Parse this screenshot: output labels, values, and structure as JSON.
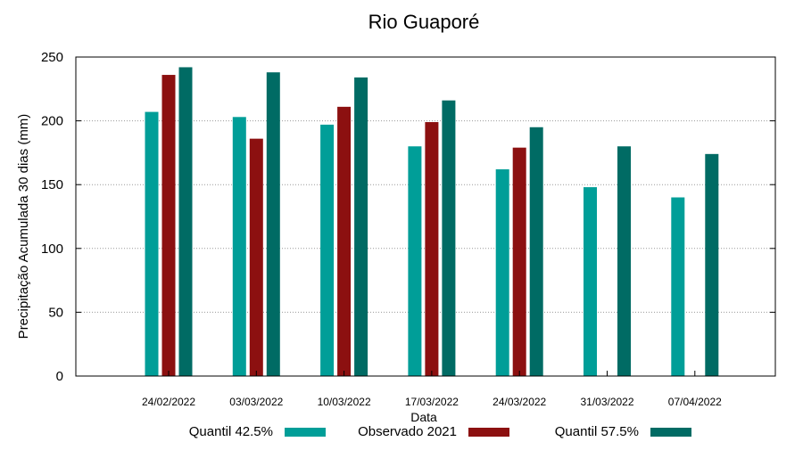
{
  "chart_data": {
    "type": "bar",
    "title": "Rio Guaporé",
    "xlabel": "Data",
    "ylabel": "Precipitação Acumulada 30 dias (mm)",
    "ylim": [
      0,
      250
    ],
    "yticks": [
      0,
      50,
      100,
      150,
      200,
      250
    ],
    "grid": "horizontal-dotted",
    "legend_position": "bottom",
    "categories": [
      "24/02/2022",
      "03/03/2022",
      "10/03/2022",
      "17/03/2022",
      "24/03/2022",
      "31/03/2022",
      "07/04/2022"
    ],
    "series": [
      {
        "name": "Quantil 42.5%",
        "color": "#009e98",
        "values": [
          207,
          203,
          197,
          180,
          162,
          148,
          140
        ]
      },
      {
        "name": "Observado 2021",
        "color": "#8c1010",
        "values": [
          236,
          186,
          211,
          199,
          179,
          null,
          null
        ]
      },
      {
        "name": "Quantil 57.5%",
        "color": "#006b64",
        "values": [
          242,
          238,
          234,
          216,
          195,
          180,
          174
        ]
      }
    ]
  }
}
